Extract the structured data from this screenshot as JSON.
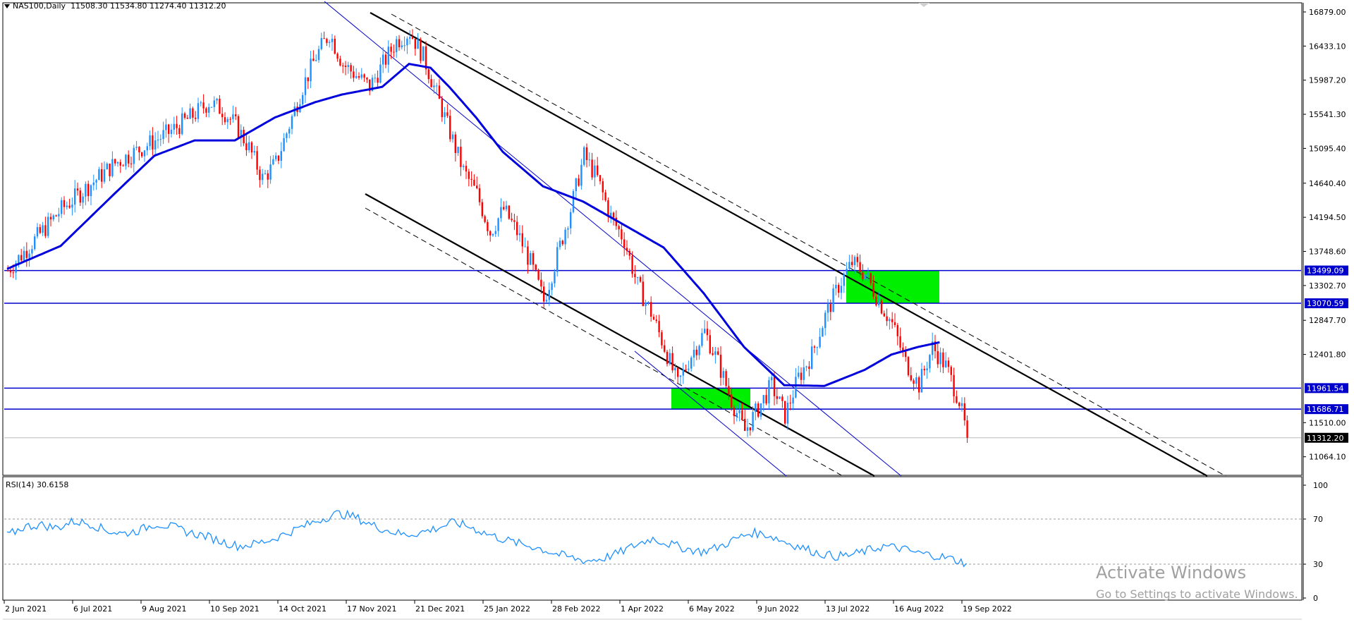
{
  "header": {
    "symbol": "NAS100,Daily",
    "ohlc": "11508.30 11534.80 11274.40 11312.20"
  },
  "rsi": {
    "label": "RSI(14) 30.6158"
  },
  "watermark": {
    "line1": "Activate Windows",
    "line2": "Go to Settings to activate Windows."
  },
  "colors": {
    "up": "#1e90ff",
    "down": "#ff0000",
    "ma": "#0000dd",
    "level": "#0000cc",
    "zone": "#00ee00",
    "rsi": "#1e90ff"
  },
  "chart_data": {
    "type": "candlestick",
    "y_range": [
      10840,
      16980
    ],
    "y_ticks": [
      "16879.00",
      "16433.10",
      "15987.20",
      "15541.30",
      "15095.40",
      "14640.40",
      "14194.50",
      "13748.60",
      "13302.70",
      "12847.70",
      "12401.80",
      "11510.00",
      "11064.10"
    ],
    "x_ticks": [
      "2 Jun 2021",
      "6 Jul 2021",
      "9 Aug 2021",
      "10 Sep 2021",
      "14 Oct 2021",
      "17 Nov 2021",
      "21 Dec 2021",
      "25 Jan 2022",
      "28 Feb 2022",
      "1 Apr 2022",
      "6 May 2022",
      "9 Jun 2022",
      "13 Jul 2022",
      "16 Aug 2022",
      "19 Sep 2022"
    ],
    "levels": [
      {
        "label": "13499.09",
        "value": 13499.09
      },
      {
        "label": "13070.59",
        "value": 13070.59
      },
      {
        "label": "11961.54",
        "value": 11961.54
      },
      {
        "label": "11686.71",
        "value": 11686.71
      }
    ],
    "current_price": {
      "label": "11312.20",
      "value": 11312.2
    },
    "close_path": [
      [
        0,
        13500
      ],
      [
        10,
        13900
      ],
      [
        20,
        14300
      ],
      [
        30,
        14600
      ],
      [
        40,
        14900
      ],
      [
        50,
        15100
      ],
      [
        60,
        15300
      ],
      [
        70,
        15550
      ],
      [
        75,
        15700
      ],
      [
        80,
        15600
      ],
      [
        85,
        15400
      ],
      [
        90,
        15100
      ],
      [
        95,
        14700
      ],
      [
        100,
        14900
      ],
      [
        105,
        15400
      ],
      [
        110,
        15900
      ],
      [
        115,
        16300
      ],
      [
        120,
        16600
      ],
      [
        125,
        16200
      ],
      [
        130,
        16050
      ],
      [
        135,
        15900
      ],
      [
        140,
        16200
      ],
      [
        145,
        16500
      ],
      [
        150,
        16620
      ],
      [
        155,
        16300
      ],
      [
        160,
        15800
      ],
      [
        165,
        15300
      ],
      [
        170,
        14800
      ],
      [
        175,
        14500
      ],
      [
        180,
        14000
      ],
      [
        185,
        14300
      ],
      [
        190,
        14000
      ],
      [
        195,
        13600
      ],
      [
        200,
        13100
      ],
      [
        205,
        13700
      ],
      [
        210,
        14300
      ],
      [
        215,
        15000
      ],
      [
        220,
        14700
      ],
      [
        225,
        14200
      ],
      [
        230,
        13900
      ],
      [
        235,
        13300
      ],
      [
        240,
        12950
      ],
      [
        245,
        12500
      ],
      [
        250,
        12000
      ],
      [
        255,
        12400
      ],
      [
        260,
        12700
      ],
      [
        265,
        12300
      ],
      [
        270,
        11800
      ],
      [
        275,
        11400
      ],
      [
        280,
        11700
      ],
      [
        285,
        12000
      ],
      [
        290,
        11600
      ],
      [
        295,
        12100
      ],
      [
        300,
        12400
      ],
      [
        305,
        12900
      ],
      [
        310,
        13300
      ],
      [
        315,
        13600
      ],
      [
        320,
        13450
      ],
      [
        325,
        13100
      ],
      [
        330,
        12800
      ],
      [
        335,
        12300
      ],
      [
        340,
        12000
      ],
      [
        345,
        12500
      ],
      [
        350,
        12250
      ],
      [
        355,
        11800
      ],
      [
        358,
        11312
      ]
    ],
    "ma_path": [
      [
        0,
        13520
      ],
      [
        20,
        13820
      ],
      [
        40,
        14500
      ],
      [
        55,
        15000
      ],
      [
        70,
        15200
      ],
      [
        85,
        15200
      ],
      [
        100,
        15500
      ],
      [
        115,
        15700
      ],
      [
        125,
        15800
      ],
      [
        140,
        15900
      ],
      [
        150,
        16200
      ],
      [
        158,
        16150
      ],
      [
        165,
        15900
      ],
      [
        175,
        15500
      ],
      [
        185,
        15050
      ],
      [
        200,
        14600
      ],
      [
        215,
        14400
      ],
      [
        230,
        14100
      ],
      [
        245,
        13800
      ],
      [
        260,
        13200
      ],
      [
        275,
        12500
      ],
      [
        290,
        12000
      ],
      [
        305,
        11990
      ],
      [
        320,
        12200
      ],
      [
        330,
        12400
      ],
      [
        340,
        12500
      ],
      [
        348,
        12560
      ]
    ],
    "rsi": {
      "levels": [
        70,
        30
      ],
      "axis_labels": [
        "100",
        "70",
        "30",
        "0"
      ],
      "values": [
        55,
        63,
        65,
        62,
        68,
        66,
        60,
        57,
        60,
        66,
        63,
        58,
        55,
        50,
        46,
        48,
        52,
        58,
        64,
        70,
        75,
        72,
        65,
        60,
        56,
        58,
        62,
        67,
        63,
        57,
        52,
        48,
        45,
        40,
        36,
        33,
        35,
        40,
        47,
        53,
        48,
        44,
        41,
        45,
        52,
        58,
        56,
        50,
        45,
        40,
        37,
        38,
        42,
        46,
        44,
        40,
        38,
        35,
        31
      ]
    }
  }
}
